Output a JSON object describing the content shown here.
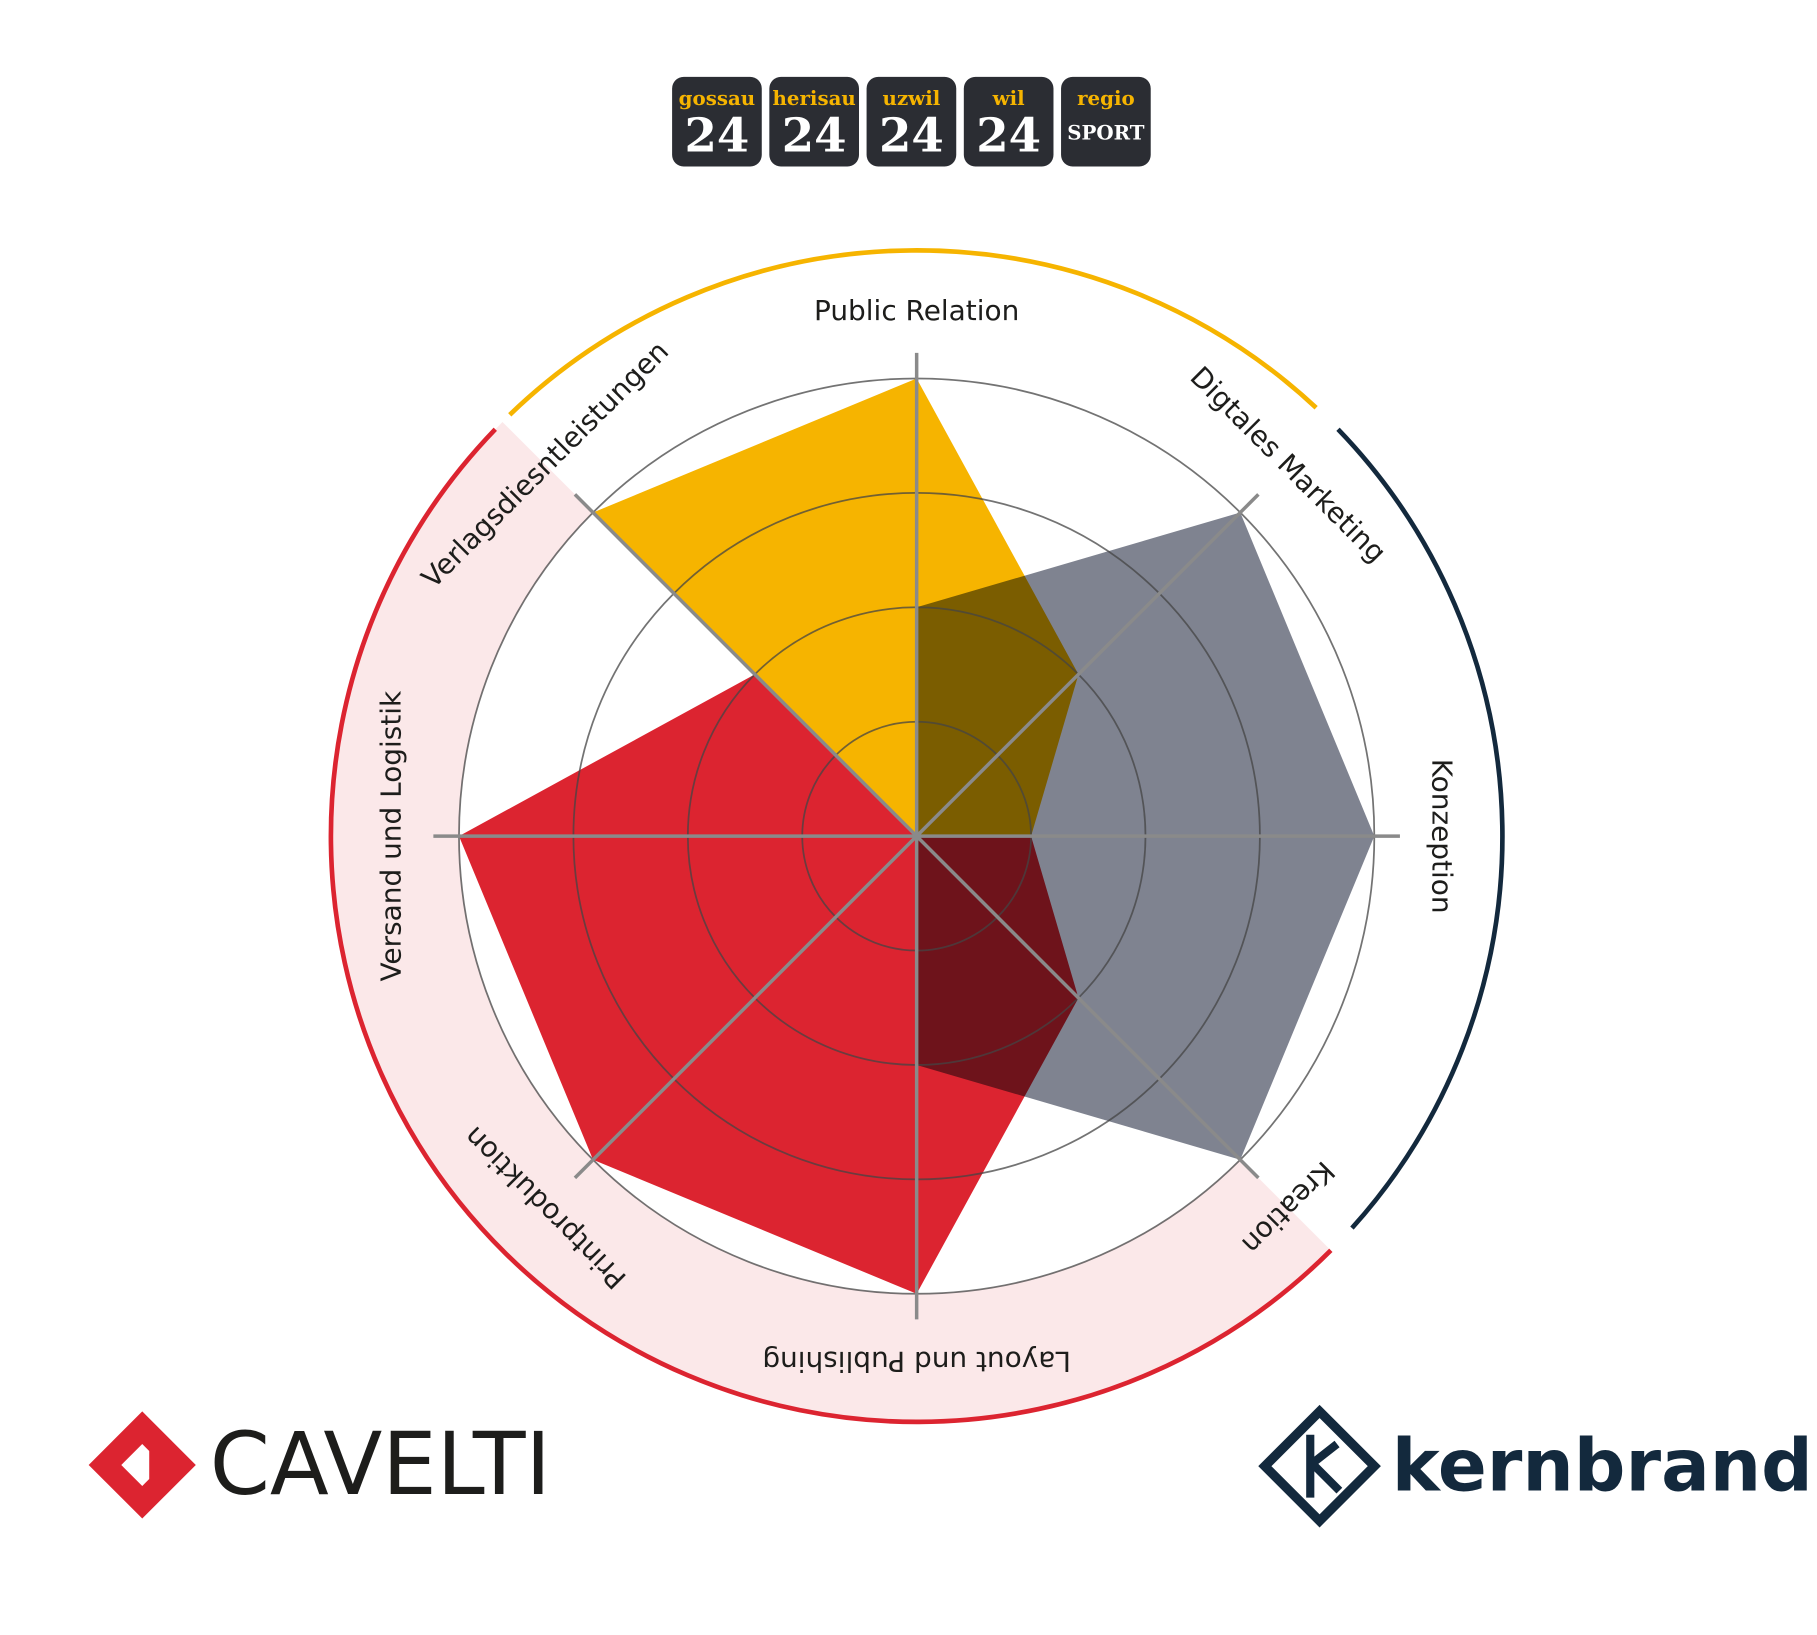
{
  "chart_data": {
    "type": "radar",
    "categories": [
      "Public Relation",
      "Digtales Marketing",
      "Konzeption",
      "Kreation",
      "Layout und Publishing",
      "Printproduktion",
      "Versand und Logistik",
      "Verlagsdiesntleistungen"
    ],
    "series": [
      {
        "color": "#f6b400",
        "values": [
          4,
          2,
          1,
          0,
          0,
          0,
          0,
          4
        ]
      },
      {
        "color": "#dc2430",
        "values": [
          0,
          0,
          1,
          2,
          4,
          4,
          4,
          2
        ]
      },
      {
        "color": "#7f8390",
        "values": [
          2,
          4,
          4,
          4,
          2,
          0,
          0,
          0
        ]
      }
    ],
    "rlim": [
      0,
      4
    ],
    "rticks": [
      1,
      2,
      3,
      4
    ],
    "grid": true
  },
  "badges": [
    {
      "label": "gossau",
      "number": "24"
    },
    {
      "label": "herisau",
      "number": "24"
    },
    {
      "label": "uzwil",
      "number": "24"
    },
    {
      "label": "wil",
      "number": "24"
    },
    {
      "label": "regio",
      "number": "SPORT"
    }
  ],
  "logos": [
    "CAVELTI",
    "kernbrand"
  ]
}
